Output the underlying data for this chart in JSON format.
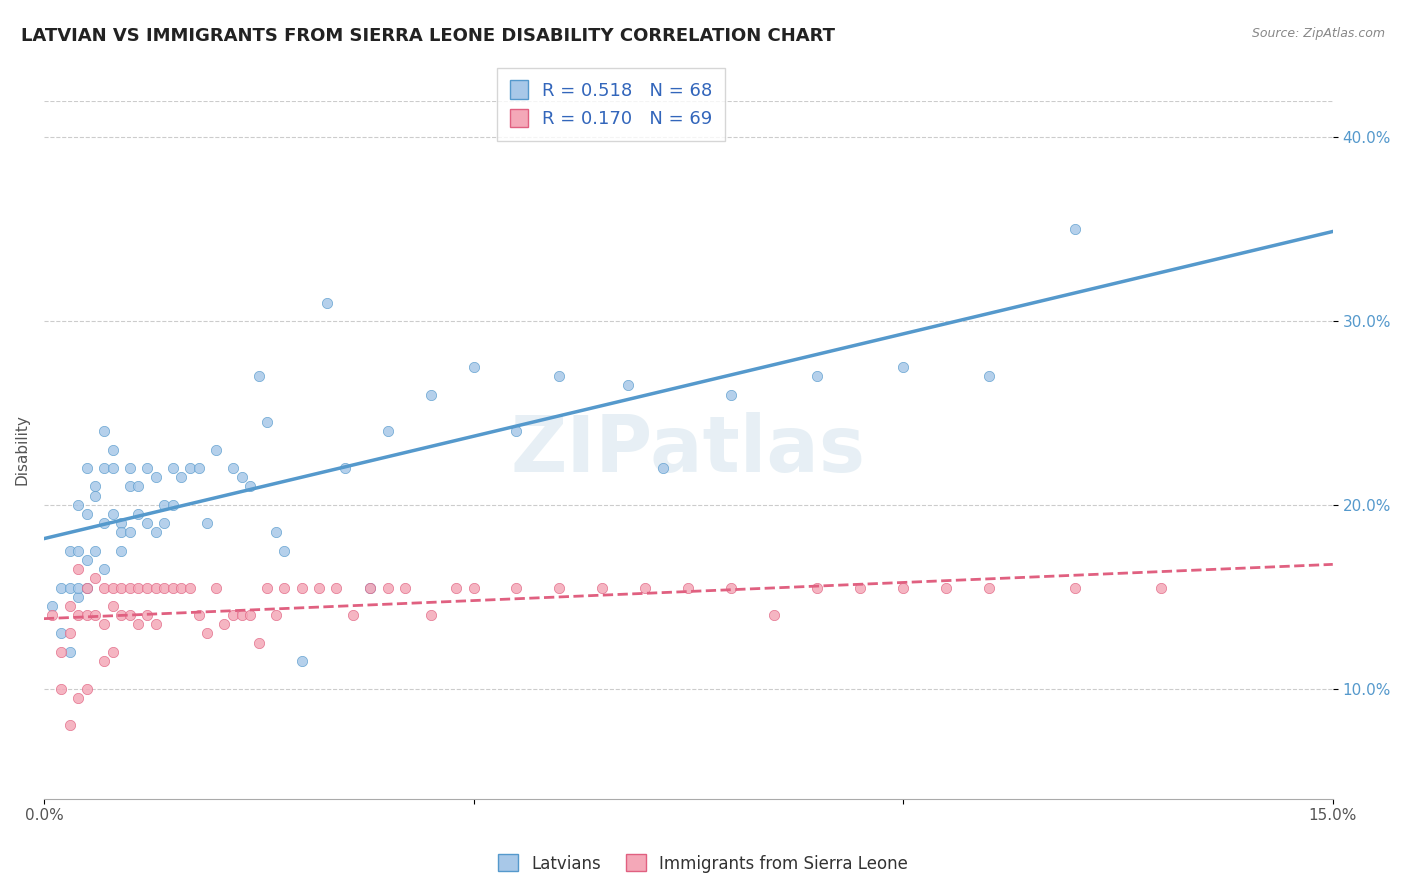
{
  "title": "LATVIAN VS IMMIGRANTS FROM SIERRA LEONE DISABILITY CORRELATION CHART",
  "source": "Source: ZipAtlas.com",
  "ylabel": "Disability",
  "xlim": [
    0.0,
    0.15
  ],
  "ylim": [
    0.04,
    0.42
  ],
  "latvian_R": 0.518,
  "latvian_N": 68,
  "sierra_leone_R": 0.17,
  "sierra_leone_N": 69,
  "latvian_color": "#a8c8e8",
  "sierra_leone_color": "#f4a8b8",
  "latvian_line_color": "#5599cc",
  "sierra_leone_line_color": "#e06080",
  "watermark": "ZIPatlas",
  "legend_labels": [
    "Latvians",
    "Immigrants from Sierra Leone"
  ],
  "latvian_scatter_x": [
    0.001,
    0.002,
    0.002,
    0.003,
    0.003,
    0.003,
    0.004,
    0.004,
    0.004,
    0.004,
    0.005,
    0.005,
    0.005,
    0.005,
    0.006,
    0.006,
    0.006,
    0.007,
    0.007,
    0.007,
    0.007,
    0.008,
    0.008,
    0.008,
    0.009,
    0.009,
    0.009,
    0.01,
    0.01,
    0.01,
    0.011,
    0.011,
    0.012,
    0.012,
    0.013,
    0.013,
    0.014,
    0.014,
    0.015,
    0.015,
    0.016,
    0.017,
    0.018,
    0.019,
    0.02,
    0.022,
    0.023,
    0.024,
    0.025,
    0.026,
    0.027,
    0.028,
    0.03,
    0.033,
    0.035,
    0.038,
    0.04,
    0.045,
    0.05,
    0.055,
    0.06,
    0.068,
    0.072,
    0.08,
    0.09,
    0.1,
    0.11,
    0.12
  ],
  "latvian_scatter_y": [
    0.145,
    0.13,
    0.155,
    0.175,
    0.155,
    0.12,
    0.2,
    0.15,
    0.175,
    0.155,
    0.22,
    0.195,
    0.17,
    0.155,
    0.21,
    0.205,
    0.175,
    0.24,
    0.22,
    0.19,
    0.165,
    0.23,
    0.22,
    0.195,
    0.19,
    0.185,
    0.175,
    0.22,
    0.21,
    0.185,
    0.21,
    0.195,
    0.22,
    0.19,
    0.215,
    0.185,
    0.2,
    0.19,
    0.22,
    0.2,
    0.215,
    0.22,
    0.22,
    0.19,
    0.23,
    0.22,
    0.215,
    0.21,
    0.27,
    0.245,
    0.185,
    0.175,
    0.115,
    0.31,
    0.22,
    0.155,
    0.24,
    0.26,
    0.275,
    0.24,
    0.27,
    0.265,
    0.22,
    0.26,
    0.27,
    0.275,
    0.27,
    0.35
  ],
  "sierra_leone_scatter_x": [
    0.001,
    0.002,
    0.002,
    0.003,
    0.003,
    0.003,
    0.004,
    0.004,
    0.004,
    0.005,
    0.005,
    0.005,
    0.006,
    0.006,
    0.007,
    0.007,
    0.007,
    0.008,
    0.008,
    0.008,
    0.009,
    0.009,
    0.01,
    0.01,
    0.011,
    0.011,
    0.012,
    0.012,
    0.013,
    0.013,
    0.014,
    0.015,
    0.016,
    0.017,
    0.018,
    0.019,
    0.02,
    0.021,
    0.022,
    0.023,
    0.024,
    0.025,
    0.026,
    0.027,
    0.028,
    0.03,
    0.032,
    0.034,
    0.036,
    0.038,
    0.04,
    0.042,
    0.045,
    0.048,
    0.05,
    0.055,
    0.06,
    0.065,
    0.07,
    0.075,
    0.08,
    0.085,
    0.09,
    0.095,
    0.1,
    0.105,
    0.11,
    0.12,
    0.13
  ],
  "sierra_leone_scatter_y": [
    0.14,
    0.1,
    0.12,
    0.145,
    0.13,
    0.08,
    0.165,
    0.14,
    0.095,
    0.155,
    0.14,
    0.1,
    0.16,
    0.14,
    0.155,
    0.135,
    0.115,
    0.155,
    0.145,
    0.12,
    0.155,
    0.14,
    0.155,
    0.14,
    0.155,
    0.135,
    0.155,
    0.14,
    0.155,
    0.135,
    0.155,
    0.155,
    0.155,
    0.155,
    0.14,
    0.13,
    0.155,
    0.135,
    0.14,
    0.14,
    0.14,
    0.125,
    0.155,
    0.14,
    0.155,
    0.155,
    0.155,
    0.155,
    0.14,
    0.155,
    0.155,
    0.155,
    0.14,
    0.155,
    0.155,
    0.155,
    0.155,
    0.155,
    0.155,
    0.155,
    0.155,
    0.14,
    0.155,
    0.155,
    0.155,
    0.155,
    0.155,
    0.155,
    0.155
  ]
}
